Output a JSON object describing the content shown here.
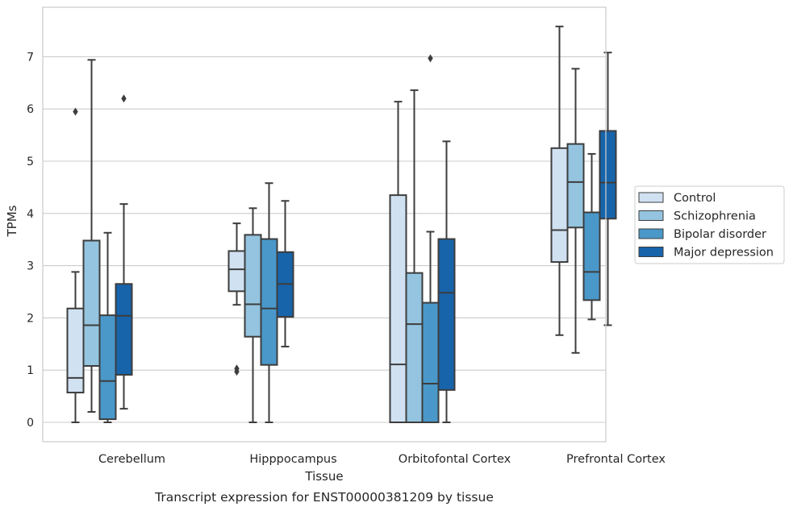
{
  "chart_data": {
    "type": "box",
    "title": "",
    "caption": "Transcript expression for ENST00000381209 by tissue",
    "xlabel": "Tissue",
    "ylabel": "TPMs",
    "ylim": [
      -0.36,
      7.95
    ],
    "yticks": [
      0,
      1,
      2,
      3,
      4,
      5,
      6,
      7
    ],
    "grid": true,
    "legend_position": "right",
    "categories": [
      "Cerebellum",
      "Hipppocampus",
      "Orbitofontal Cortex",
      "Prefrontal Cortex"
    ],
    "series": [
      {
        "name": "Control",
        "color": "#d0e1f2",
        "boxes": [
          {
            "whislo": 0.0,
            "q1": 0.57,
            "med": 0.85,
            "q3": 2.18,
            "whishi": 2.88,
            "fliers": [
              5.95
            ]
          },
          {
            "whislo": 2.25,
            "q1": 2.51,
            "med": 2.93,
            "q3": 3.28,
            "whishi": 3.81,
            "fliers": [
              0.97,
              1.03
            ]
          },
          {
            "whislo": 0.0,
            "q1": 0.0,
            "med": 1.11,
            "q3": 4.35,
            "whishi": 6.14,
            "fliers": []
          },
          {
            "whislo": 1.67,
            "q1": 3.07,
            "med": 3.68,
            "q3": 5.25,
            "whishi": 7.58,
            "fliers": []
          }
        ]
      },
      {
        "name": "Schizophrenia",
        "color": "#94c4df",
        "boxes": [
          {
            "whislo": 0.2,
            "q1": 1.08,
            "med": 1.86,
            "q3": 3.48,
            "whishi": 6.94,
            "fliers": []
          },
          {
            "whislo": 0.0,
            "q1": 1.64,
            "med": 2.26,
            "q3": 3.59,
            "whishi": 4.1,
            "fliers": []
          },
          {
            "whislo": 0.0,
            "q1": 0.0,
            "med": 1.88,
            "q3": 2.86,
            "whishi": 6.36,
            "fliers": []
          },
          {
            "whislo": 1.33,
            "q1": 3.73,
            "med": 4.6,
            "q3": 5.33,
            "whishi": 6.77,
            "fliers": []
          }
        ]
      },
      {
        "name": "Bipolar disorder",
        "color": "#4a98c9",
        "boxes": [
          {
            "whislo": 0.0,
            "q1": 0.06,
            "med": 0.79,
            "q3": 2.05,
            "whishi": 3.63,
            "fliers": []
          },
          {
            "whislo": 0.0,
            "q1": 1.1,
            "med": 2.18,
            "q3": 3.51,
            "whishi": 4.58,
            "fliers": []
          },
          {
            "whislo": 0.0,
            "q1": 0.0,
            "med": 0.74,
            "q3": 2.29,
            "whishi": 3.65,
            "fliers": [
              6.97
            ]
          },
          {
            "whislo": 1.97,
            "q1": 2.34,
            "med": 2.88,
            "q3": 4.02,
            "whishi": 5.14,
            "fliers": []
          }
        ]
      },
      {
        "name": "Major depression",
        "color": "#1764ab",
        "boxes": [
          {
            "whislo": 0.26,
            "q1": 0.91,
            "med": 2.04,
            "q3": 2.65,
            "whishi": 4.18,
            "fliers": [
              6.2
            ]
          },
          {
            "whislo": 1.45,
            "q1": 2.02,
            "med": 2.65,
            "q3": 3.26,
            "whishi": 4.24,
            "fliers": []
          },
          {
            "whislo": 0.0,
            "q1": 0.62,
            "med": 2.48,
            "q3": 3.51,
            "whishi": 5.38,
            "fliers": []
          },
          {
            "whislo": 1.86,
            "q1": 3.9,
            "med": 4.59,
            "q3": 5.58,
            "whishi": 7.08,
            "fliers": []
          }
        ]
      }
    ]
  }
}
